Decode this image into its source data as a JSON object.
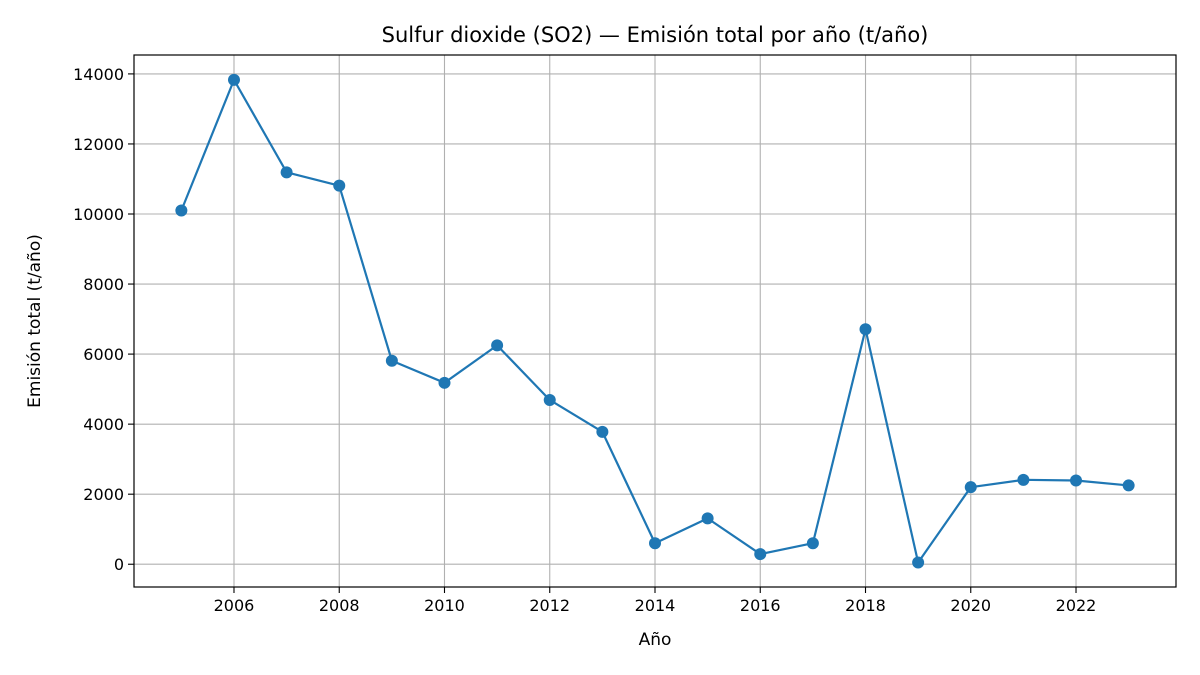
{
  "chart_data": {
    "type": "line",
    "title": "Sulfur dioxide (SO2) — Emisión total por año (t/año)",
    "xlabel": "Año",
    "ylabel": "Emisión total (t/año)",
    "x": [
      2005,
      2006,
      2007,
      2008,
      2009,
      2010,
      2011,
      2012,
      2013,
      2014,
      2015,
      2016,
      2017,
      2018,
      2019,
      2020,
      2021,
      2022,
      2023
    ],
    "series": [
      {
        "values": [
          10100,
          13830,
          11190,
          10810,
          5810,
          5180,
          6250,
          4690,
          3780,
          600,
          1310,
          290,
          600,
          6710,
          50,
          2200,
          2410,
          2390,
          2250
        ],
        "color": "#1f77b4",
        "marker": "circle"
      }
    ],
    "xlim": [
      2004.1,
      2023.9
    ],
    "ylim": [
      -650,
      14540
    ],
    "xticks": [
      2006,
      2008,
      2010,
      2012,
      2014,
      2016,
      2018,
      2020,
      2022
    ],
    "yticks": [
      0,
      2000,
      4000,
      6000,
      8000,
      10000,
      12000,
      14000
    ],
    "grid": true,
    "grid_color": "#b0b0b0"
  }
}
